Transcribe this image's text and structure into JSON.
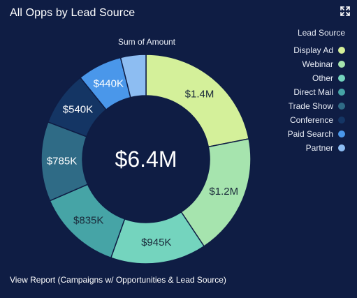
{
  "header": {
    "title": "All Opps by Lead Source"
  },
  "footer": {
    "link_label": "View Report (Campaigns w/ Opportunities & Lead Source)"
  },
  "colors": {
    "background": "#0f1d44",
    "text": "#ffffff"
  },
  "icons": {
    "expand": "expand-icon"
  },
  "chart_data": {
    "type": "donut",
    "title": "Sum of Amount",
    "total_label": "$6.4M",
    "legend_title": "Lead Source",
    "legend_position": "right",
    "series": [
      {
        "name": "Display Ad",
        "value": 1400000,
        "label": "$1.4M",
        "color": "#d4f09a",
        "label_color": "#1a2a3a"
      },
      {
        "name": "Webinar",
        "value": 1200000,
        "label": "$1.2M",
        "color": "#a6e4ae",
        "label_color": "#1a2a3a"
      },
      {
        "name": "Other",
        "value": 945000,
        "label": "$945K",
        "color": "#74d4be",
        "label_color": "#1a2a3a"
      },
      {
        "name": "Direct Mail",
        "value": 835000,
        "label": "$835K",
        "color": "#46a4a6",
        "label_color": "#1a2a3a"
      },
      {
        "name": "Trade Show",
        "value": 785000,
        "label": "$785K",
        "color": "#2f6b86",
        "label_color": "#ffffff"
      },
      {
        "name": "Conference",
        "value": 540000,
        "label": "$540K",
        "color": "#143564",
        "label_color": "#ffffff"
      },
      {
        "name": "Paid Search",
        "value": 440000,
        "label": "$440K",
        "color": "#4a97ea",
        "label_color": "#ffffff"
      },
      {
        "name": "Partner",
        "value": 250000,
        "label": "",
        "color": "#8dbdf2",
        "label_color": "#ffffff"
      }
    ]
  }
}
